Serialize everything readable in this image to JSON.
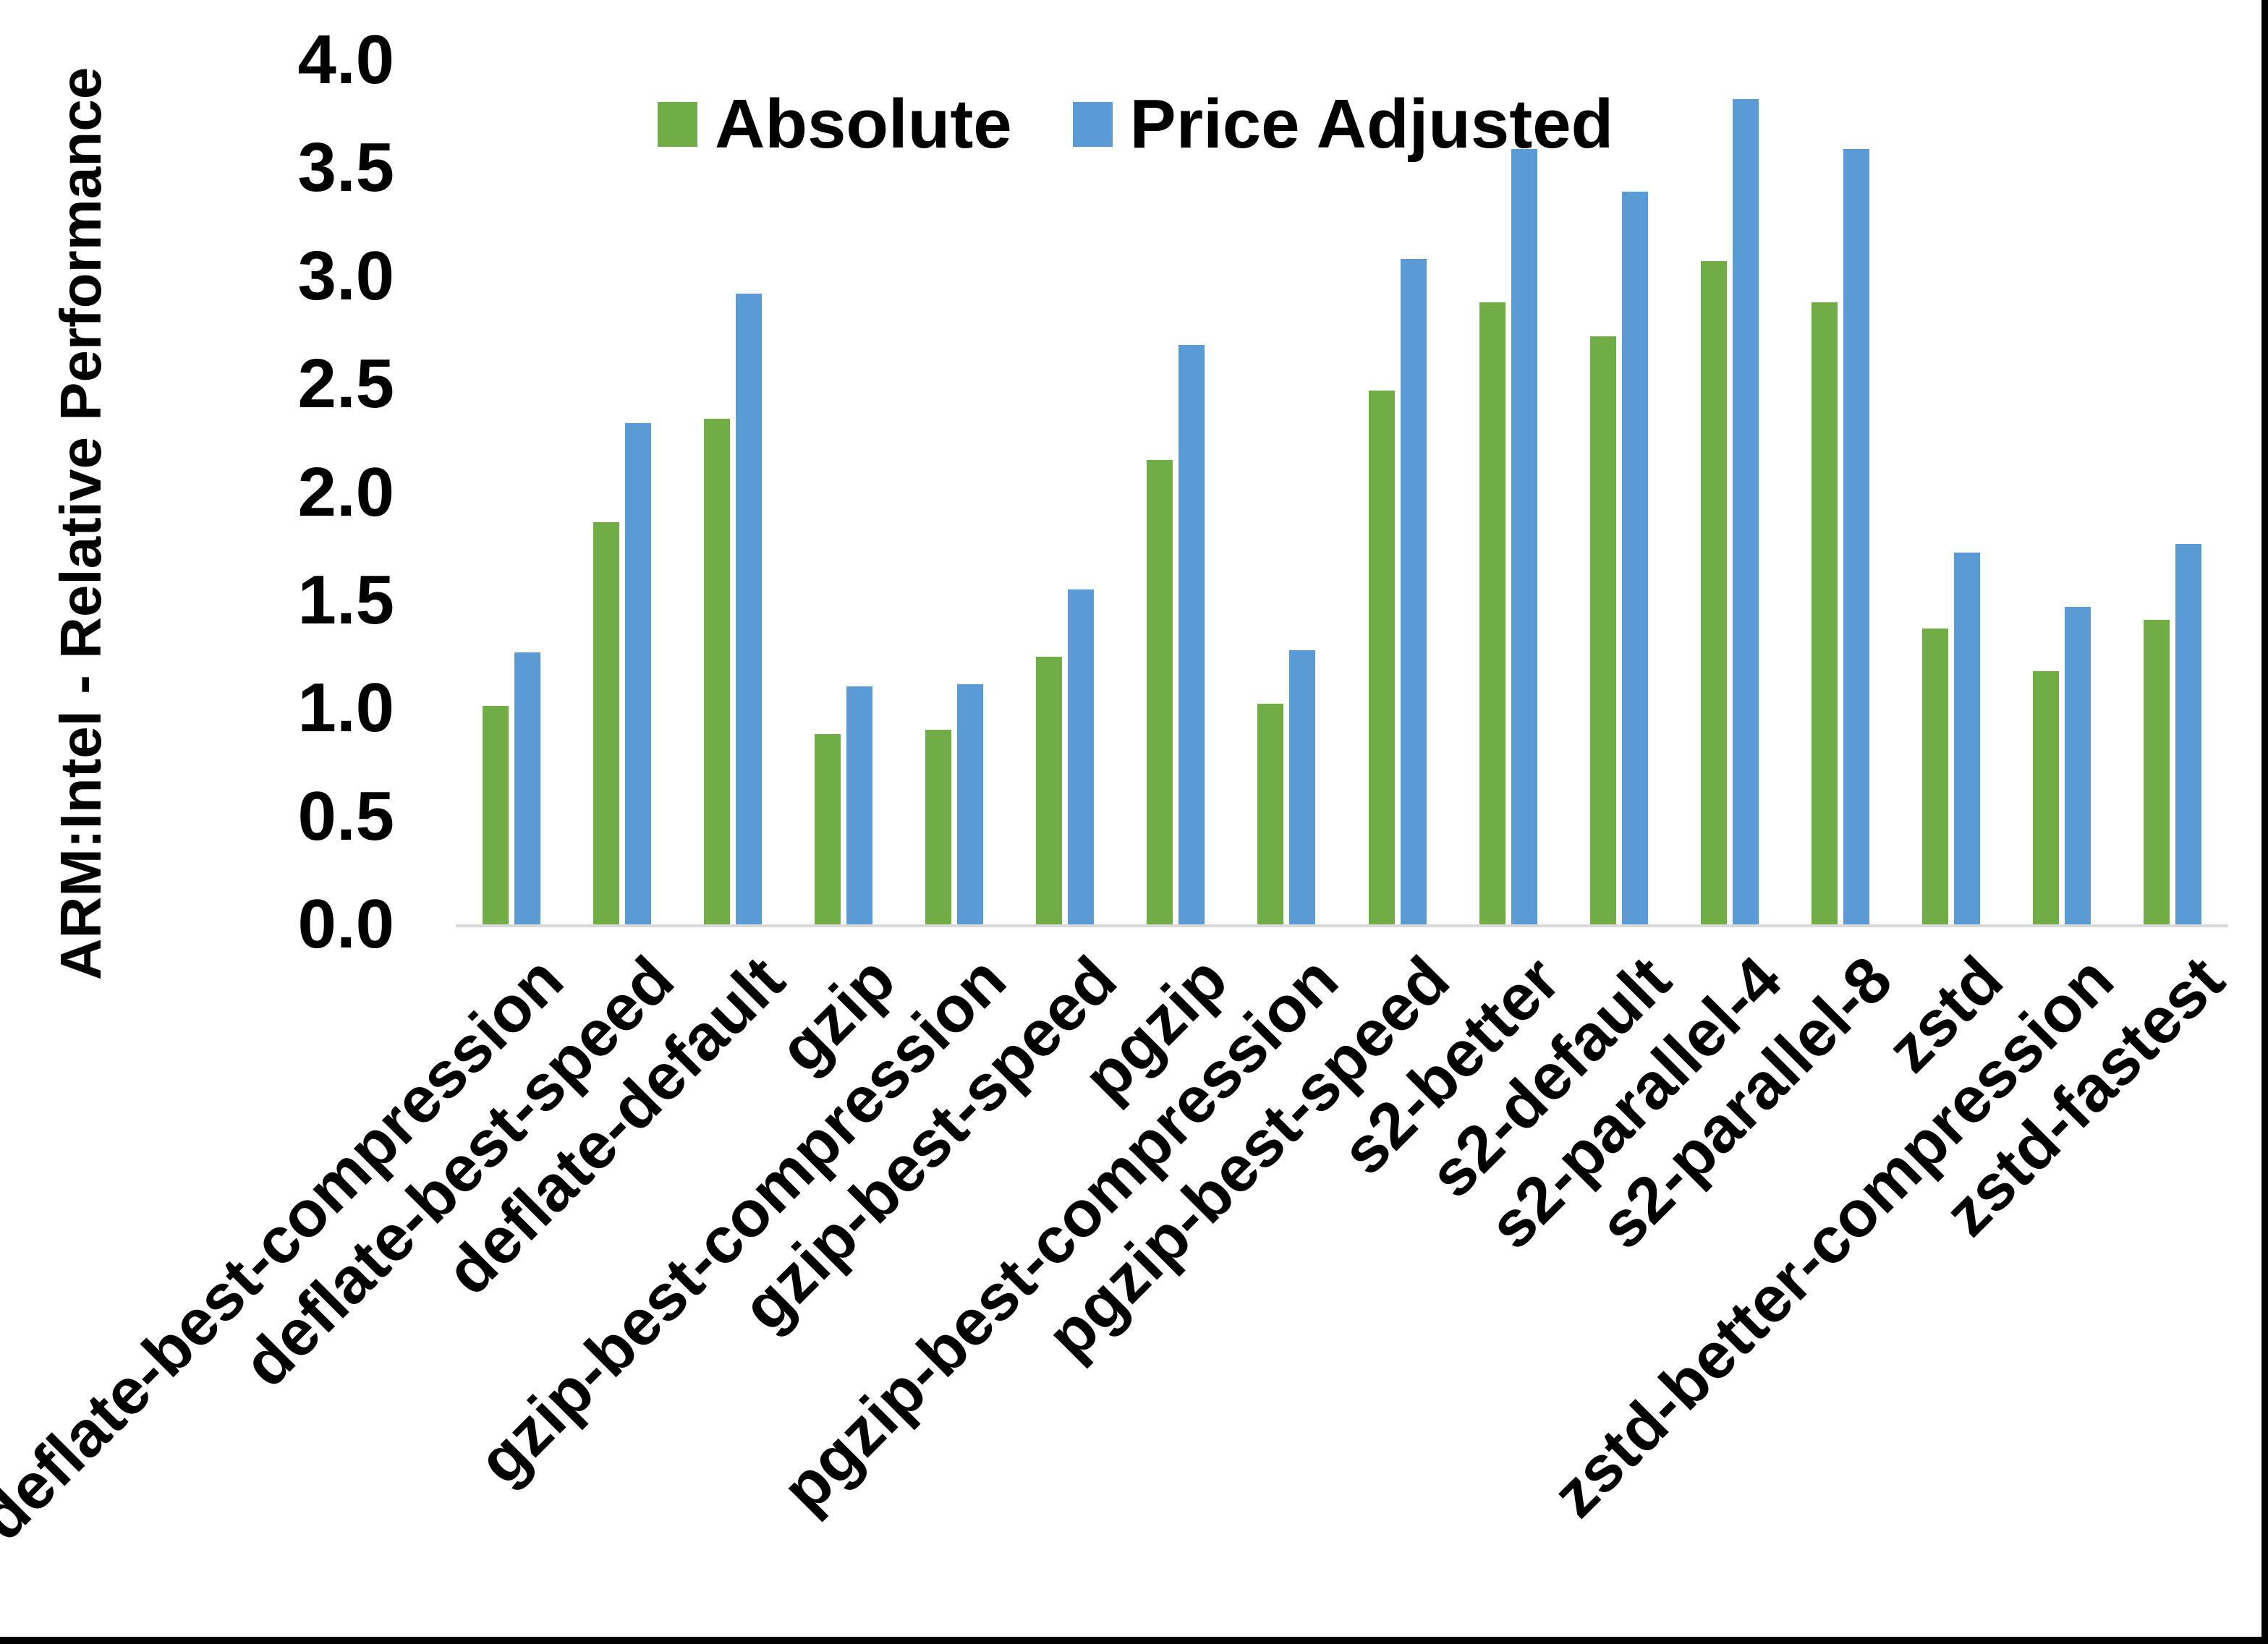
{
  "window": {
    "background": "#ffffff",
    "border_color": "#000000"
  },
  "chart_data": {
    "type": "bar",
    "title": "",
    "xlabel": "",
    "ylabel": "ARM:Intel - Relative Performance",
    "ylim": [
      0.0,
      4.0
    ],
    "ytick_step": 0.5,
    "yticks": [
      "0.0",
      "0.5",
      "1.0",
      "1.5",
      "2.0",
      "2.5",
      "3.0",
      "3.5",
      "4.0"
    ],
    "grid": false,
    "legend_position": "top",
    "axis_line_color": "#d9d9d9",
    "categories": [
      "deflate-best-compression",
      "deflate-best-speed",
      "deflate-default",
      "gzip",
      "gzip-best-compression",
      "gzip-best-speed",
      "pgzip",
      "pgzip-best-compression",
      "pgzip-best-speed",
      "s2-better",
      "s2-default",
      "s2-parallel-4",
      "s2-parallel-8",
      "zstd",
      "zstd-better-compression",
      "zstd-fastest"
    ],
    "series": [
      {
        "name": "Absolute",
        "color": "#70AD47",
        "values": [
          1.01,
          1.86,
          2.34,
          0.88,
          0.9,
          1.24,
          2.15,
          1.02,
          2.47,
          2.88,
          2.72,
          3.07,
          2.88,
          1.37,
          1.17,
          1.41
        ]
      },
      {
        "name": "Price Adjusted",
        "color": "#5B9BD5",
        "values": [
          1.26,
          2.32,
          2.92,
          1.1,
          1.11,
          1.55,
          2.68,
          1.27,
          3.08,
          3.59,
          3.39,
          3.82,
          3.59,
          1.72,
          1.47,
          1.76
        ]
      }
    ]
  }
}
